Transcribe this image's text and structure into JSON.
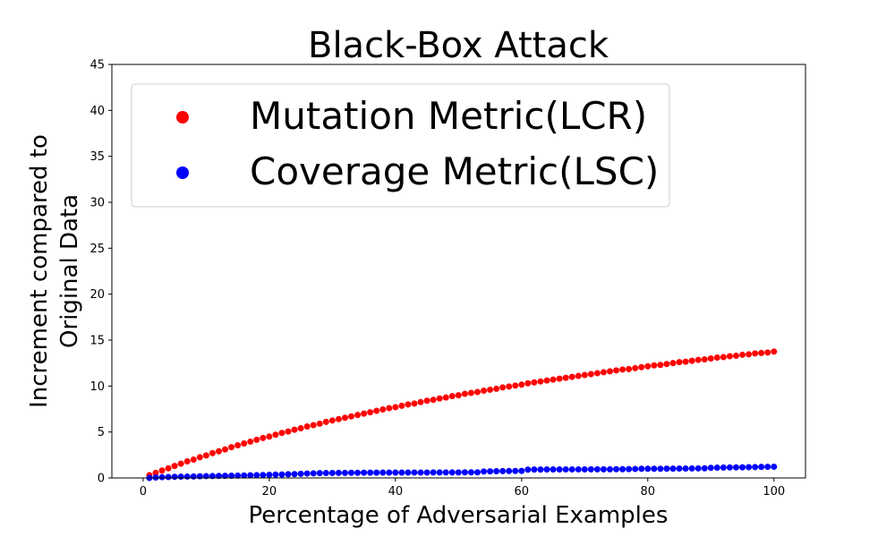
{
  "chart_data": {
    "type": "scatter",
    "title": "Black-Box Attack",
    "xlabel": "Percentage of Adversarial Examples",
    "ylabel": [
      "Increment compared to",
      "Original Data"
    ],
    "xlim": [
      -4.95,
      105
    ],
    "ylim": [
      0,
      45
    ],
    "xticks": [
      0,
      20,
      40,
      60,
      80,
      100
    ],
    "yticks": [
      0,
      5,
      10,
      15,
      20,
      25,
      30,
      35,
      40,
      45
    ],
    "grid": false,
    "legend_position": "top-left",
    "series": [
      {
        "name": "Mutation Metric(LCR)",
        "color": "#ff0000",
        "x": [
          1,
          2,
          3,
          4,
          5,
          6,
          7,
          8,
          9,
          10,
          11,
          12,
          13,
          14,
          15,
          16,
          17,
          18,
          19,
          20,
          21,
          22,
          23,
          24,
          25,
          26,
          27,
          28,
          29,
          30,
          31,
          32,
          33,
          34,
          35,
          36,
          37,
          38,
          39,
          40,
          41,
          42,
          43,
          44,
          45,
          46,
          47,
          48,
          49,
          50,
          51,
          52,
          53,
          54,
          55,
          56,
          57,
          58,
          59,
          60,
          61,
          62,
          63,
          64,
          65,
          66,
          67,
          68,
          69,
          70,
          71,
          72,
          73,
          74,
          75,
          76,
          77,
          78,
          79,
          80,
          81,
          82,
          83,
          84,
          85,
          86,
          87,
          88,
          89,
          90,
          91,
          92,
          93,
          94,
          95,
          96,
          97,
          98,
          99,
          100
        ],
        "values": [
          0.3,
          0.55,
          0.8,
          1.05,
          1.3,
          1.55,
          1.8,
          2.0,
          2.25,
          2.45,
          2.7,
          2.9,
          3.1,
          3.35,
          3.55,
          3.75,
          3.95,
          4.15,
          4.35,
          4.5,
          4.7,
          4.9,
          5.05,
          5.25,
          5.4,
          5.6,
          5.75,
          5.9,
          6.1,
          6.25,
          6.4,
          6.55,
          6.7,
          6.85,
          7.0,
          7.15,
          7.3,
          7.45,
          7.6,
          7.7,
          7.85,
          8.0,
          8.1,
          8.25,
          8.4,
          8.5,
          8.65,
          8.75,
          8.9,
          9.0,
          9.15,
          9.25,
          9.35,
          9.5,
          9.6,
          9.7,
          9.85,
          9.95,
          10.05,
          10.15,
          10.3,
          10.4,
          10.5,
          10.6,
          10.7,
          10.8,
          10.9,
          11.0,
          11.1,
          11.2,
          11.3,
          11.4,
          11.5,
          11.6,
          11.7,
          11.8,
          11.85,
          11.95,
          12.05,
          12.15,
          12.25,
          12.3,
          12.4,
          12.5,
          12.6,
          12.65,
          12.75,
          12.85,
          12.9,
          13.0,
          13.1,
          13.15,
          13.25,
          13.3,
          13.4,
          13.45,
          13.55,
          13.6,
          13.65,
          13.75
        ]
      },
      {
        "name": "Coverage Metric(LSC)",
        "color": "#0000ff",
        "x": [
          1,
          2,
          3,
          4,
          5,
          6,
          7,
          8,
          9,
          10,
          11,
          12,
          13,
          14,
          15,
          16,
          17,
          18,
          19,
          20,
          21,
          22,
          23,
          24,
          25,
          26,
          27,
          28,
          29,
          30,
          31,
          32,
          33,
          34,
          35,
          36,
          37,
          38,
          39,
          40,
          41,
          42,
          43,
          44,
          45,
          46,
          47,
          48,
          49,
          50,
          51,
          52,
          53,
          54,
          55,
          56,
          57,
          58,
          59,
          60,
          61,
          62,
          63,
          64,
          65,
          66,
          67,
          68,
          69,
          70,
          71,
          72,
          73,
          74,
          75,
          76,
          77,
          78,
          79,
          80,
          81,
          82,
          83,
          84,
          85,
          86,
          87,
          88,
          89,
          90,
          91,
          92,
          93,
          94,
          95,
          96,
          97,
          98,
          99,
          100
        ],
        "values": [
          0.0,
          0.05,
          0.08,
          0.1,
          0.12,
          0.14,
          0.15,
          0.16,
          0.18,
          0.2,
          0.21,
          0.22,
          0.23,
          0.24,
          0.25,
          0.27,
          0.29,
          0.3,
          0.32,
          0.34,
          0.36,
          0.38,
          0.4,
          0.42,
          0.45,
          0.48,
          0.5,
          0.52,
          0.53,
          0.54,
          0.55,
          0.55,
          0.56,
          0.56,
          0.57,
          0.57,
          0.57,
          0.58,
          0.58,
          0.58,
          0.58,
          0.59,
          0.59,
          0.59,
          0.59,
          0.6,
          0.6,
          0.6,
          0.6,
          0.6,
          0.61,
          0.61,
          0.61,
          0.7,
          0.72,
          0.73,
          0.74,
          0.75,
          0.76,
          0.77,
          0.9,
          0.91,
          0.91,
          0.92,
          0.92,
          0.92,
          0.93,
          0.93,
          0.93,
          0.93,
          0.94,
          0.94,
          0.94,
          0.94,
          0.95,
          0.95,
          0.96,
          0.98,
          1.0,
          1.0,
          1.0,
          1.0,
          1.01,
          1.01,
          1.02,
          1.02,
          1.03,
          1.04,
          1.05,
          1.1,
          1.12,
          1.13,
          1.14,
          1.15,
          1.16,
          1.17,
          1.18,
          1.2,
          1.21,
          1.22
        ]
      }
    ]
  }
}
